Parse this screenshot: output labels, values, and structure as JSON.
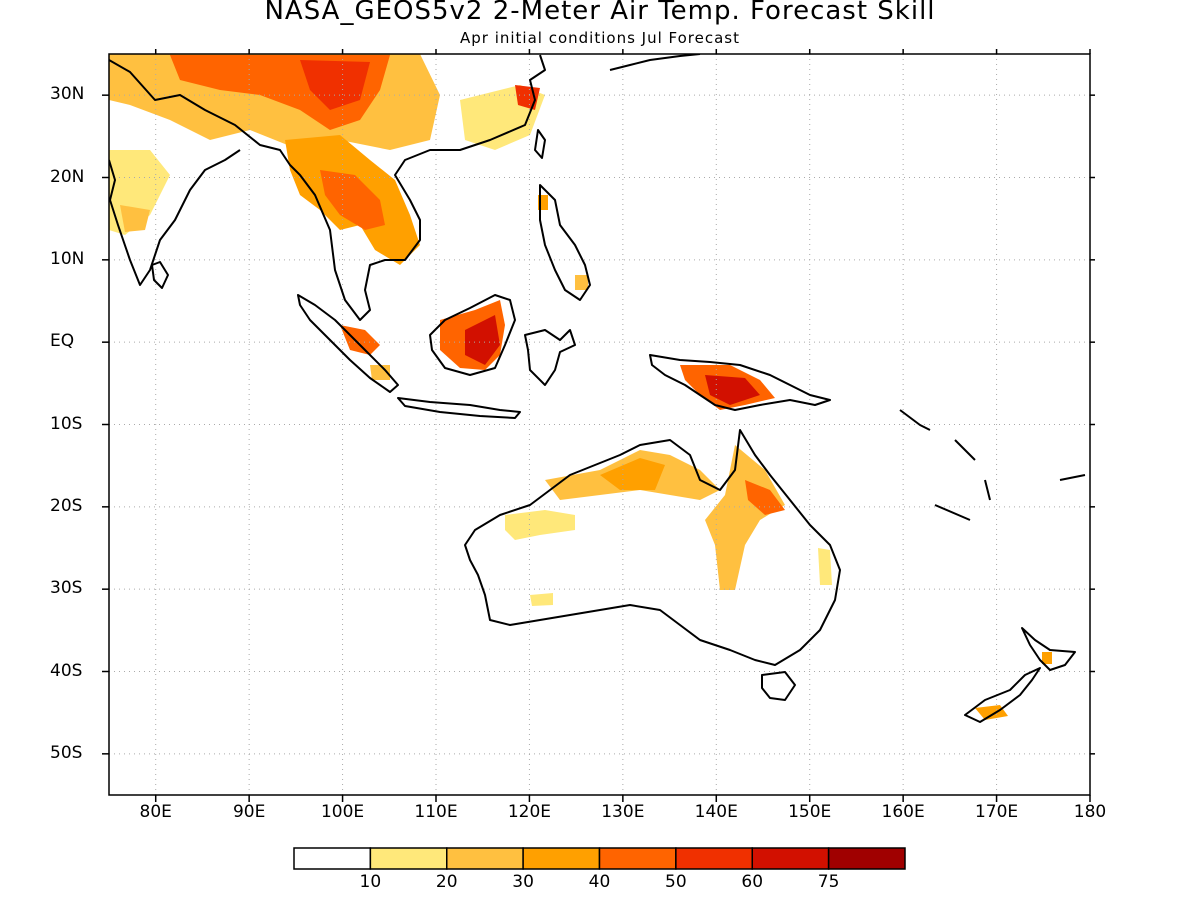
{
  "title": "NASA_GEOS5v2 2-Meter Air Temp. Forecast Skill",
  "subtitle": "Apr initial conditions  Jul Forecast",
  "map": {
    "lon_range": [
      75,
      180
    ],
    "lat_range": [
      -55,
      35
    ],
    "gridlines": "dotted",
    "x_ticks": [
      {
        "lon": 80,
        "label": "80E"
      },
      {
        "lon": 90,
        "label": "90E"
      },
      {
        "lon": 100,
        "label": "100E"
      },
      {
        "lon": 110,
        "label": "110E"
      },
      {
        "lon": 120,
        "label": "120E"
      },
      {
        "lon": 130,
        "label": "130E"
      },
      {
        "lon": 140,
        "label": "140E"
      },
      {
        "lon": 150,
        "label": "150E"
      },
      {
        "lon": 160,
        "label": "160E"
      },
      {
        "lon": 170,
        "label": "170E"
      },
      {
        "lon": 180,
        "label": "180"
      }
    ],
    "y_ticks": [
      {
        "lat": 30,
        "label": "30N"
      },
      {
        "lat": 20,
        "label": "20N"
      },
      {
        "lat": 10,
        "label": "10N"
      },
      {
        "lat": 0,
        "label": "EQ"
      },
      {
        "lat": -10,
        "label": "10S"
      },
      {
        "lat": -20,
        "label": "20S"
      },
      {
        "lat": -30,
        "label": "30S"
      },
      {
        "lat": -40,
        "label": "40S"
      },
      {
        "lat": -50,
        "label": "50S"
      }
    ]
  },
  "colorbar": {
    "colors": [
      "#ffffff",
      "#ffe87a",
      "#ffc040",
      "#ffa000",
      "#ff6400",
      "#f03000",
      "#d21000",
      "#a00000"
    ],
    "labels": [
      "10",
      "20",
      "30",
      "40",
      "50",
      "60",
      "75"
    ]
  }
}
